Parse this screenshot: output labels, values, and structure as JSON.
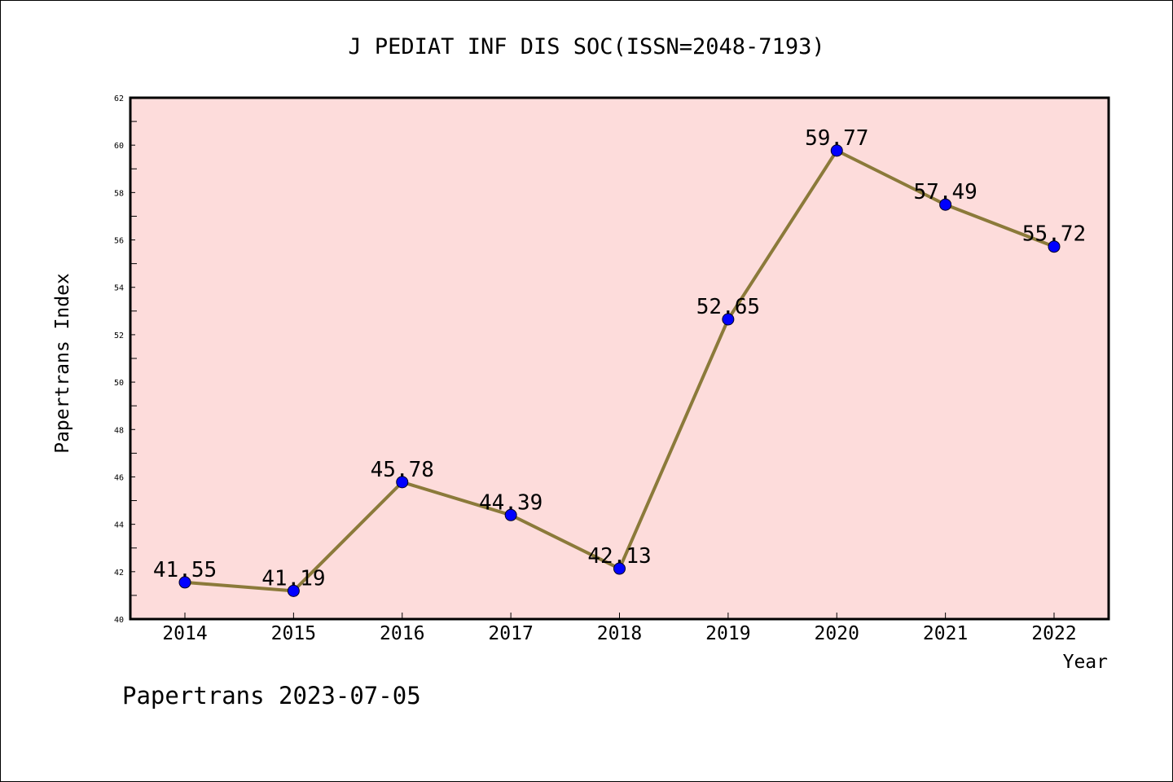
{
  "chart_data": {
    "type": "line",
    "title": "J PEDIAT INF DIS SOC(ISSN=2048-7193)",
    "xlabel": "Year",
    "ylabel": "Papertrans Index",
    "categories": [
      "2014",
      "2015",
      "2016",
      "2017",
      "2018",
      "2019",
      "2020",
      "2021",
      "2022"
    ],
    "series": [
      {
        "values": [
          41.55,
          41.19,
          45.78,
          44.39,
          42.13,
          52.65,
          59.77,
          57.49,
          55.72
        ],
        "labels": [
          "41.55",
          "41.19",
          "45.78",
          "44.39",
          "42.13",
          "52.65",
          "59.77",
          "57.49",
          "55.72"
        ]
      }
    ],
    "ylim": [
      40,
      62
    ],
    "yticks": [
      "40",
      "42",
      "44",
      "46",
      "48",
      "50",
      "52",
      "54",
      "56",
      "58",
      "60",
      "62"
    ],
    "grid": false,
    "plot_background": "#fddcdb",
    "line_color": "#8b7a3a",
    "marker_color": "#0000ff"
  },
  "footer": {
    "watermark": "Papertrans 2023-07-05"
  }
}
